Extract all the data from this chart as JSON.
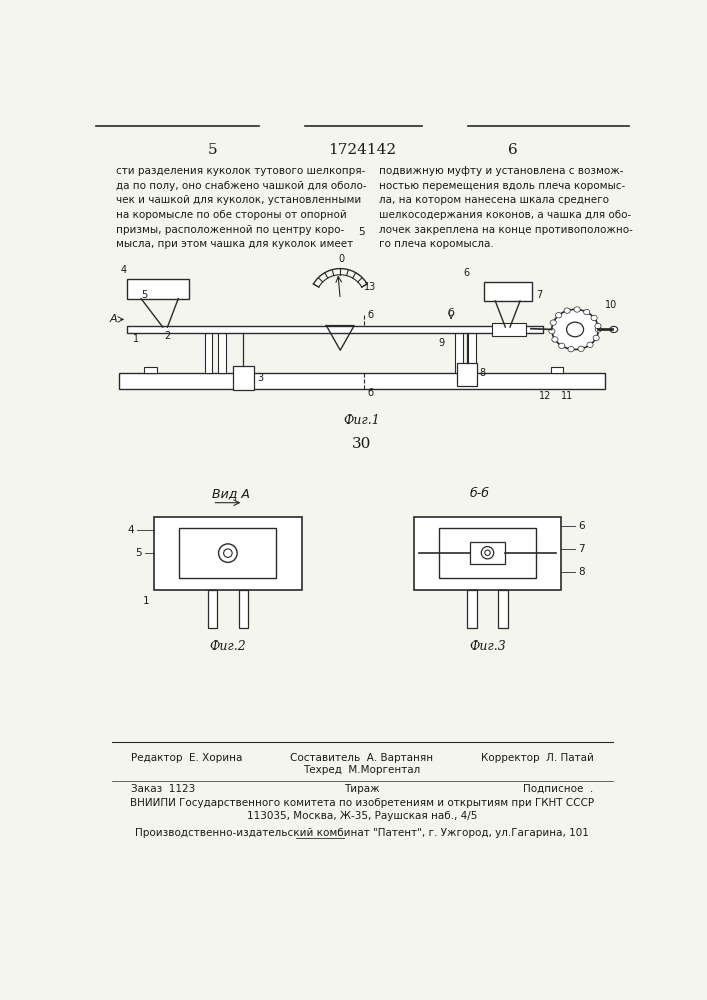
{
  "page_number_left": "5",
  "patent_number": "1724142",
  "page_number_right": "6",
  "text_left_col": [
    "сти разделения куколок тутового шелкопря-",
    "да по полу, оно снабжено чашкой для оболо-",
    "чек и чашкой для куколок, установленными",
    "на коромысле по обе стороны от опорной",
    "призмы, расположенной по центру коро-",
    "мысла, при этом чашка для куколок имеет"
  ],
  "text_right_col": [
    "подвижную муфту и установлена с возмож-",
    "ностью перемещения вдоль плеча коромыс-",
    "ла, на котором нанесена шкала среднего",
    "шелкосодержания коконов, а чашка для обо-",
    "лочек закреплена на конце противоположно-",
    "го плеча коромысла."
  ],
  "fig1_caption": "Фиг.1",
  "fig2_caption": "Фиг.2",
  "fig3_caption": "Фиг.3",
  "page_middle_number": "30",
  "vid_a_label": "Вид А",
  "bb_label": "б-б",
  "footer_line1_left": "Редактор  Е. Хорина",
  "footer_line1_center": "Составитель  А. Вартанян",
  "footer_line1_right": "Корректор  Л. Патай",
  "footer_line2_center": "Техред  М.Моргентал",
  "footer_line3_left": "Заказ  1123",
  "footer_line3_center": "Тираж",
  "footer_line3_right": "Подписное  .",
  "footer_line4": "ВНИИПИ Государственного комитета по изобретениям и открытиям при ГКНТ СССР",
  "footer_line5": "113035, Москва, Ж-35, Раушская наб., 4/5",
  "footer_line6": "Производственно-издательский комбинат \"Патент\", г. Ужгород, ул.Гагарина, 101",
  "bg_color": "#f5f5f0",
  "text_color": "#1a1a1a",
  "line_color": "#2a2a2a"
}
